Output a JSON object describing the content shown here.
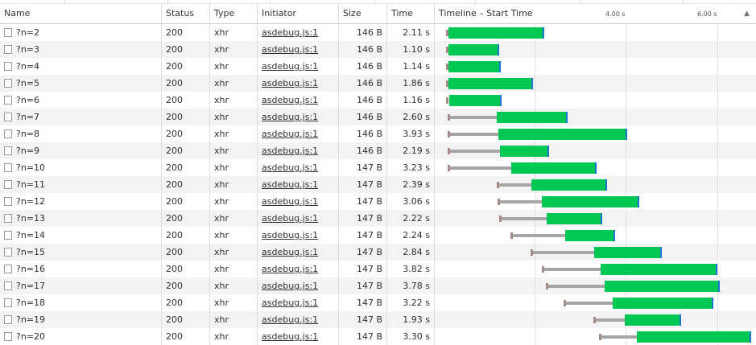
{
  "columns": {
    "name": "Name",
    "status": "Status",
    "type": "Type",
    "initiator": "Initiator",
    "size": "Size",
    "time": "Time",
    "timeline": "Timeline – Start Time"
  },
  "timeline_ticks": [
    "4.00 s",
    "6.00 s"
  ],
  "sort_indicator": "▲",
  "requests": [
    {
      "name": "?n=2",
      "status": "200",
      "type": "xhr",
      "initiator": "asdebug.js:1",
      "size": "146 B",
      "time": "2.11 s"
    },
    {
      "name": "?n=3",
      "status": "200",
      "type": "xhr",
      "initiator": "asdebug.js:1",
      "size": "146 B",
      "time": "1.10 s"
    },
    {
      "name": "?n=4",
      "status": "200",
      "type": "xhr",
      "initiator": "asdebug.js:1",
      "size": "146 B",
      "time": "1.14 s"
    },
    {
      "name": "?n=5",
      "status": "200",
      "type": "xhr",
      "initiator": "asdebug.js:1",
      "size": "146 B",
      "time": "1.86 s"
    },
    {
      "name": "?n=6",
      "status": "200",
      "type": "xhr",
      "initiator": "asdebug.js:1",
      "size": "146 B",
      "time": "1.16 s"
    },
    {
      "name": "?n=7",
      "status": "200",
      "type": "xhr",
      "initiator": "asdebug.js:1",
      "size": "146 B",
      "time": "2.60 s"
    },
    {
      "name": "?n=8",
      "status": "200",
      "type": "xhr",
      "initiator": "asdebug.js:1",
      "size": "146 B",
      "time": "3.93 s"
    },
    {
      "name": "?n=9",
      "status": "200",
      "type": "xhr",
      "initiator": "asdebug.js:1",
      "size": "146 B",
      "time": "2.19 s"
    },
    {
      "name": "?n=10",
      "status": "200",
      "type": "xhr",
      "initiator": "asdebug.js:1",
      "size": "147 B",
      "time": "3.23 s"
    },
    {
      "name": "?n=11",
      "status": "200",
      "type": "xhr",
      "initiator": "asdebug.js:1",
      "size": "147 B",
      "time": "2.39 s"
    },
    {
      "name": "?n=12",
      "status": "200",
      "type": "xhr",
      "initiator": "asdebug.js:1",
      "size": "147 B",
      "time": "3.06 s"
    },
    {
      "name": "?n=13",
      "status": "200",
      "type": "xhr",
      "initiator": "asdebug.js:1",
      "size": "147 B",
      "time": "2.22 s"
    },
    {
      "name": "?n=14",
      "status": "200",
      "type": "xhr",
      "initiator": "asdebug.js:1",
      "size": "147 B",
      "time": "2.24 s"
    },
    {
      "name": "?n=15",
      "status": "200",
      "type": "xhr",
      "initiator": "asdebug.js:1",
      "size": "147 B",
      "time": "2.84 s"
    },
    {
      "name": "?n=16",
      "status": "200",
      "type": "xhr",
      "initiator": "asdebug.js:1",
      "size": "147 B",
      "time": "3.82 s"
    },
    {
      "name": "?n=17",
      "status": "200",
      "type": "xhr",
      "initiator": "asdebug.js:1",
      "size": "147 B",
      "time": "3.78 s"
    },
    {
      "name": "?n=18",
      "status": "200",
      "type": "xhr",
      "initiator": "asdebug.js:1",
      "size": "147 B",
      "time": "3.22 s"
    },
    {
      "name": "?n=19",
      "status": "200",
      "type": "xhr",
      "initiator": "asdebug.js:1",
      "size": "147 B",
      "time": "1.93 s"
    },
    {
      "name": "?n=20",
      "status": "200",
      "type": "xhr",
      "initiator": "asdebug.js:1",
      "size": "147 B",
      "time": "3.30 s"
    }
  ],
  "colors": {
    "waiting": "#a6a6a6",
    "stalled": "#a88a86",
    "download": "#00c853",
    "download_edge": "#1976d2",
    "row_alt": "#f3f3f3"
  }
}
